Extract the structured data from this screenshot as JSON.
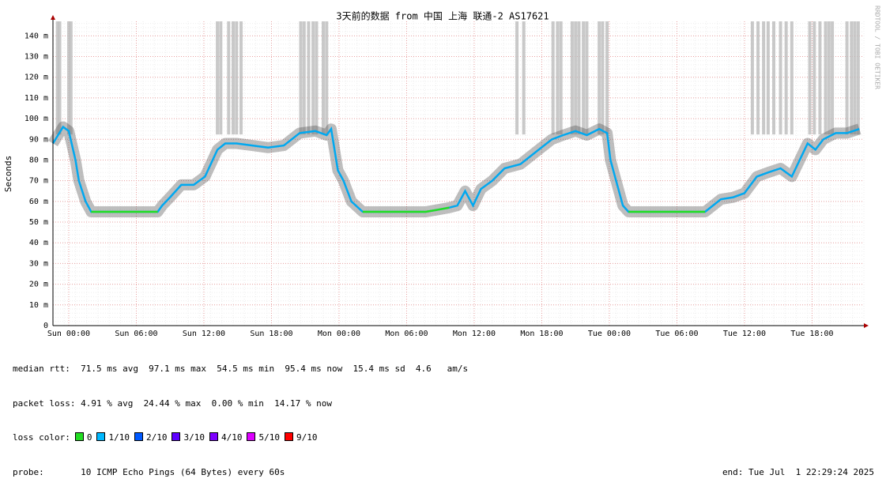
{
  "chart_data": {
    "type": "line",
    "title": "3天前的数据 from 中国 上海 联通-2 AS17621",
    "y_label": "Seconds",
    "watermark": "RRDTOOL / TOBI OETIKER",
    "xlim": [
      -1.4,
      70.6
    ],
    "ylim": [
      0,
      147
    ],
    "xticks": [
      {
        "value": 0,
        "label": "Sun 00:00"
      },
      {
        "value": 6,
        "label": "Sun 06:00"
      },
      {
        "value": 12,
        "label": "Sun 12:00"
      },
      {
        "value": 18,
        "label": "Sun 18:00"
      },
      {
        "value": 24,
        "label": "Mon 00:00"
      },
      {
        "value": 30,
        "label": "Mon 06:00"
      },
      {
        "value": 36,
        "label": "Mon 12:00"
      },
      {
        "value": 42,
        "label": "Mon 18:00"
      },
      {
        "value": 48,
        "label": "Tue 00:00"
      },
      {
        "value": 54,
        "label": "Tue 06:00"
      },
      {
        "value": 60,
        "label": "Tue 12:00"
      },
      {
        "value": 66,
        "label": "Tue 18:00"
      }
    ],
    "yticks": [
      0,
      {
        "value": 10,
        "label": "10 m"
      },
      {
        "value": 20,
        "label": "20 m"
      },
      {
        "value": 30,
        "label": "30 m"
      },
      {
        "value": 40,
        "label": "40 m"
      },
      {
        "value": 50,
        "label": "50 m"
      },
      {
        "value": 60,
        "label": "60 m"
      },
      {
        "value": 70,
        "label": "70 m"
      },
      {
        "value": 80,
        "label": "80 m"
      },
      {
        "value": 90,
        "label": "90 m"
      },
      {
        "value": 100,
        "label": "100 m"
      },
      {
        "value": 110,
        "label": "110 m"
      },
      {
        "value": 120,
        "label": "120 m"
      },
      {
        "value": 130,
        "label": "130 m"
      },
      {
        "value": 140,
        "label": "140 m"
      }
    ],
    "grid": true,
    "x": [
      -1.4,
      -0.5,
      0,
      0.6,
      0.9,
      1.5,
      2.0,
      7.9,
      8.3,
      9.0,
      10.0,
      11.1,
      12.1,
      13.2,
      13.9,
      14.9,
      16.3,
      17.7,
      19.1,
      20.5,
      21.9,
      22.9,
      23.3,
      23.9,
      24.4,
      25.1,
      26.1,
      31.7,
      32.8,
      33.8,
      34.5,
      35.2,
      35.9,
      36.6,
      37.6,
      38.7,
      40.1,
      41.5,
      42.9,
      43.9,
      45.0,
      46.0,
      47.1,
      47.8,
      48.1,
      48.6,
      49.2,
      49.7,
      56.5,
      57.2,
      57.9,
      59.0,
      60.0,
      61.1,
      62.1,
      63.2,
      64.2,
      64.9,
      65.6,
      66.3,
      67.0,
      68.1,
      69.1,
      70.2
    ],
    "series": [
      {
        "color": "#00a8f0",
        "values": [
          88,
          96,
          94,
          80,
          70,
          60,
          55,
          55,
          58,
          62,
          68,
          68,
          72,
          85,
          88,
          88,
          87,
          86,
          87,
          93,
          94,
          92,
          95,
          75,
          70,
          60,
          55,
          55,
          56,
          57,
          58,
          65,
          58,
          66,
          70,
          76,
          78,
          84,
          90,
          92,
          94,
          92,
          95,
          93,
          80,
          70,
          58,
          55,
          55,
          58,
          61,
          62,
          64,
          72,
          74,
          76,
          72,
          80,
          88,
          85,
          90,
          93,
          93,
          95
        ]
      },
      {
        "color": "#22dd22",
        "values": [
          null,
          null,
          null,
          null,
          null,
          null,
          55,
          55,
          null,
          null,
          null,
          null,
          null,
          null,
          null,
          null,
          null,
          null,
          null,
          null,
          null,
          null,
          null,
          null,
          null,
          null,
          55,
          55,
          56,
          57,
          null,
          null,
          null,
          null,
          null,
          null,
          null,
          null,
          null,
          null,
          null,
          null,
          null,
          null,
          null,
          null,
          null,
          55,
          55,
          null,
          null,
          null,
          null,
          null,
          null,
          null,
          null,
          null,
          null,
          null,
          null,
          null,
          null,
          null
        ]
      }
    ],
    "loss_x": [
      -1.0,
      -0.8,
      0,
      0.2,
      13.2,
      13.5,
      14.2,
      14.6,
      14.9,
      15.3,
      20.6,
      20.9,
      21.3,
      21.7,
      22.0,
      22.6,
      22.9,
      39.8,
      40.4,
      43.0,
      43.4,
      43.7,
      44.7,
      45.0,
      45.3,
      45.7,
      46.0,
      47.1,
      47.4,
      47.8,
      60.7,
      61.2,
      61.7,
      62.1,
      62.6,
      63.2,
      63.7,
      64.2,
      65.8,
      66.2,
      66.7,
      67.2,
      67.5,
      67.8,
      69.1,
      69.5,
      69.8,
      70.1
    ],
    "stats": [
      "median rtt:  71.5 ms avg  97.1 ms max  54.5 ms min  95.4 ms now  15.4 ms sd  4.6   am/s",
      "packet loss: 4.91 % avg  24.44 % max  0.00 % min  14.17 % now"
    ],
    "loss_color_label": "loss color:",
    "loss_colors": [
      {
        "label": "0",
        "color": "#22dd22"
      },
      {
        "label": "1/10",
        "color": "#00b8ff"
      },
      {
        "label": "2/10",
        "color": "#0059ff"
      },
      {
        "label": "3/10",
        "color": "#5e00ff"
      },
      {
        "label": "4/10",
        "color": "#7e00ff"
      },
      {
        "label": "5/10",
        "color": "#dd00ff"
      },
      {
        "label": "9/10",
        "color": "#ff0000"
      }
    ],
    "probe": "probe:       10 ICMP Echo Pings (64 Bytes) every 60s",
    "end": "end: Tue Jul  1 22:29:24 2025"
  }
}
